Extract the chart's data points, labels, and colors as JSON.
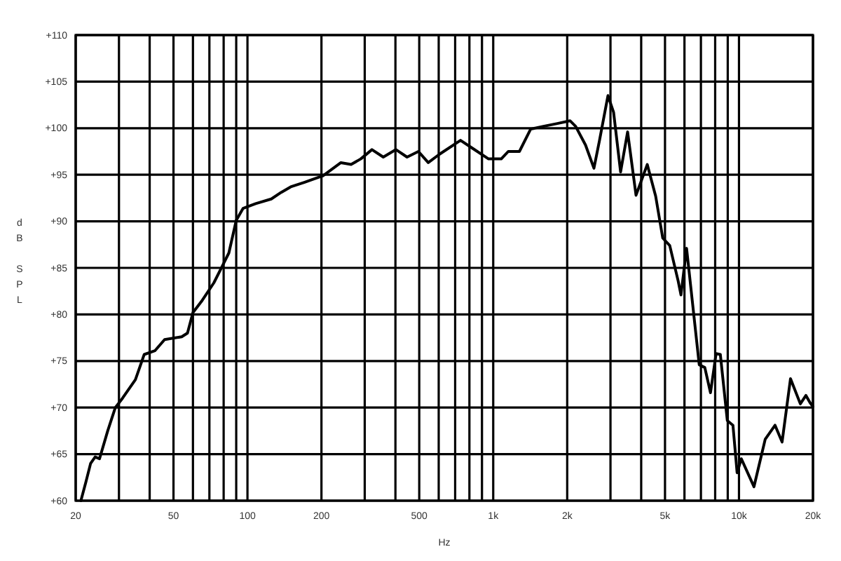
{
  "chart_data": {
    "type": "line",
    "xlabel": "Hz",
    "ylabel": "dB SPL",
    "log": "x",
    "grid": true,
    "marker": "none",
    "line_style": "solid",
    "xlim": [
      20,
      20000
    ],
    "ylim": [
      60,
      110
    ],
    "xticks": [
      {
        "value": 20,
        "label": "20"
      },
      {
        "value": 30,
        "label": null
      },
      {
        "value": 40,
        "label": null
      },
      {
        "value": 50,
        "label": "50"
      },
      {
        "value": 60,
        "label": null
      },
      {
        "value": 70,
        "label": null
      },
      {
        "value": 80,
        "label": null
      },
      {
        "value": 90,
        "label": null
      },
      {
        "value": 100,
        "label": "100"
      },
      {
        "value": 200,
        "label": "200"
      },
      {
        "value": 300,
        "label": null
      },
      {
        "value": 400,
        "label": null
      },
      {
        "value": 500,
        "label": "500"
      },
      {
        "value": 600,
        "label": null
      },
      {
        "value": 700,
        "label": null
      },
      {
        "value": 800,
        "label": null
      },
      {
        "value": 900,
        "label": null
      },
      {
        "value": 1000,
        "label": "1k"
      },
      {
        "value": 2000,
        "label": "2k"
      },
      {
        "value": 3000,
        "label": null
      },
      {
        "value": 4000,
        "label": null
      },
      {
        "value": 5000,
        "label": "5k"
      },
      {
        "value": 6000,
        "label": null
      },
      {
        "value": 7000,
        "label": null
      },
      {
        "value": 8000,
        "label": null
      },
      {
        "value": 9000,
        "label": null
      },
      {
        "value": 10000,
        "label": "10k"
      },
      {
        "value": 20000,
        "label": "20k"
      }
    ],
    "yticks": [
      {
        "value": 60,
        "label": "+60"
      },
      {
        "value": 65,
        "label": "+65"
      },
      {
        "value": 70,
        "label": "+70"
      },
      {
        "value": 75,
        "label": "+75"
      },
      {
        "value": 80,
        "label": "+80"
      },
      {
        "value": 85,
        "label": "+85"
      },
      {
        "value": 90,
        "label": "+90"
      },
      {
        "value": 95,
        "label": "+95"
      },
      {
        "value": 100,
        "label": "+100"
      },
      {
        "value": 105,
        "label": "+105"
      },
      {
        "value": 110,
        "label": "+110"
      }
    ],
    "series": [
      {
        "color": "#000000",
        "x": [
          21,
          22,
          23,
          24,
          25,
          27,
          29,
          31,
          35,
          38,
          42,
          46,
          54,
          57,
          60,
          65,
          73,
          79,
          84,
          90,
          96,
          108,
          125,
          137,
          150,
          171,
          203,
          240,
          264,
          289,
          321,
          357,
          402,
          446,
          496,
          544,
          604,
          736,
          828,
          957,
          1078,
          1151,
          1278,
          1420,
          1600,
          1824,
          2053,
          2164,
          2374,
          2569,
          2707,
          2930,
          3089,
          3298,
          3522,
          3811,
          4234,
          4581,
          4895,
          5227,
          5655,
          5807,
          6120,
          6890,
          7260,
          7657,
          8070,
          8397,
          8964,
          9450,
          9826,
          10224,
          11508,
          12786,
          14020,
          14976,
          16204,
          17770,
          18724,
          19480,
          20000
        ],
        "values": [
          60,
          62,
          64,
          64.7,
          64.5,
          67.5,
          70,
          71,
          73,
          75.7,
          76.1,
          77.3,
          77.6,
          78,
          80.2,
          81.4,
          83.4,
          85.2,
          86.6,
          90.1,
          91.4,
          91.9,
          92.4,
          93.1,
          93.7,
          94.2,
          94.9,
          96.3,
          96.1,
          96.7,
          97.7,
          96.9,
          97.7,
          96.9,
          97.5,
          96.3,
          97.2,
          98.7,
          97.8,
          96.7,
          96.7,
          97.5,
          97.5,
          99.9,
          100.2,
          100.5,
          100.8,
          100.2,
          98.2,
          95.7,
          98.7,
          103.5,
          101.7,
          95.3,
          99.6,
          92.8,
          96.1,
          92.7,
          88.2,
          87.4,
          83.6,
          82.1,
          87.1,
          74.6,
          74.3,
          71.6,
          75.8,
          75.7,
          68.6,
          68.1,
          63,
          64.5,
          61.5,
          66.6,
          68.1,
          66.3,
          73.1,
          70.4,
          71.3,
          70.5,
          70.1
        ]
      }
    ]
  }
}
